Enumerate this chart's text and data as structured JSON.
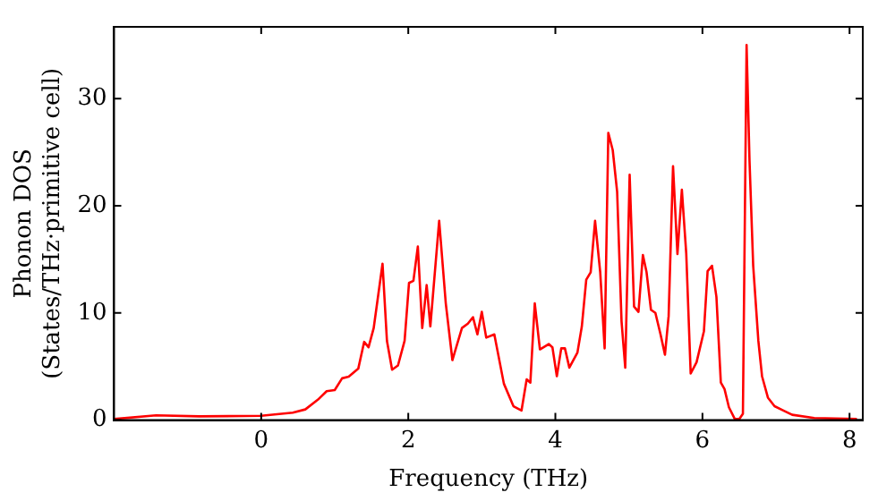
{
  "chart_data": {
    "type": "line",
    "xlabel": "Frequency (THz)",
    "ylabel": "Phonon DOS\n(States/THz·primitive cell)",
    "xlim": [
      -2.0,
      8.18
    ],
    "ylim": [
      0,
      36.7
    ],
    "xticks": [
      0,
      2,
      4,
      6,
      8
    ],
    "yticks": [
      0,
      10,
      20,
      30
    ],
    "grid": false,
    "legend": false,
    "marker": "none",
    "line_style": "solid",
    "series": [
      {
        "color": "#ff0000",
        "x": [
          -2.0,
          -1.43,
          -0.84,
          0.0,
          0.43,
          0.6,
          0.77,
          0.89,
          1.0,
          1.1,
          1.19,
          1.32,
          1.4,
          1.46,
          1.53,
          1.65,
          1.71,
          1.78,
          1.86,
          1.95,
          2.01,
          2.07,
          2.13,
          2.19,
          2.25,
          2.3,
          2.42,
          2.51,
          2.6,
          2.73,
          2.81,
          2.88,
          2.94,
          3.0,
          3.06,
          3.17,
          3.3,
          3.43,
          3.54,
          3.61,
          3.66,
          3.72,
          3.79,
          3.91,
          3.96,
          4.02,
          4.08,
          4.13,
          4.19,
          4.3,
          4.36,
          4.42,
          4.48,
          4.54,
          4.61,
          4.67,
          4.72,
          4.78,
          4.84,
          4.9,
          4.95,
          5.01,
          5.07,
          5.13,
          5.19,
          5.24,
          5.3,
          5.36,
          5.43,
          5.49,
          5.54,
          5.6,
          5.66,
          5.72,
          5.78,
          5.84,
          5.92,
          6.02,
          6.07,
          6.13,
          6.19,
          6.25,
          6.3,
          6.36,
          6.44,
          6.5,
          6.55,
          6.6,
          6.64,
          6.69,
          6.76,
          6.81,
          6.89,
          6.98,
          7.1,
          7.22,
          7.52,
          8.1
        ],
        "values": [
          0.1,
          0.45,
          0.35,
          0.4,
          0.7,
          1.0,
          1.9,
          2.7,
          2.8,
          3.9,
          4.05,
          4.8,
          7.3,
          6.8,
          8.6,
          14.6,
          7.4,
          4.7,
          5.1,
          7.4,
          12.8,
          13.0,
          16.2,
          8.6,
          12.6,
          8.75,
          18.6,
          10.9,
          5.6,
          8.6,
          9.0,
          9.6,
          8.0,
          10.1,
          7.7,
          8.0,
          3.4,
          1.3,
          0.9,
          3.8,
          3.5,
          10.9,
          6.6,
          7.1,
          6.8,
          4.1,
          6.7,
          6.7,
          4.9,
          6.3,
          8.75,
          13.1,
          13.8,
          18.6,
          13.8,
          6.7,
          26.8,
          25.2,
          21.3,
          9.2,
          4.9,
          22.9,
          10.6,
          10.1,
          15.4,
          13.8,
          10.3,
          10.0,
          8.0,
          6.1,
          9.7,
          23.7,
          15.5,
          21.5,
          15.5,
          4.35,
          5.4,
          8.3,
          13.9,
          14.4,
          11.5,
          3.5,
          2.9,
          1.2,
          0.1,
          0.1,
          0.6,
          35.0,
          24.2,
          14.4,
          7.4,
          4.1,
          2.1,
          1.3,
          0.9,
          0.5,
          0.2,
          0.1
        ]
      }
    ]
  }
}
